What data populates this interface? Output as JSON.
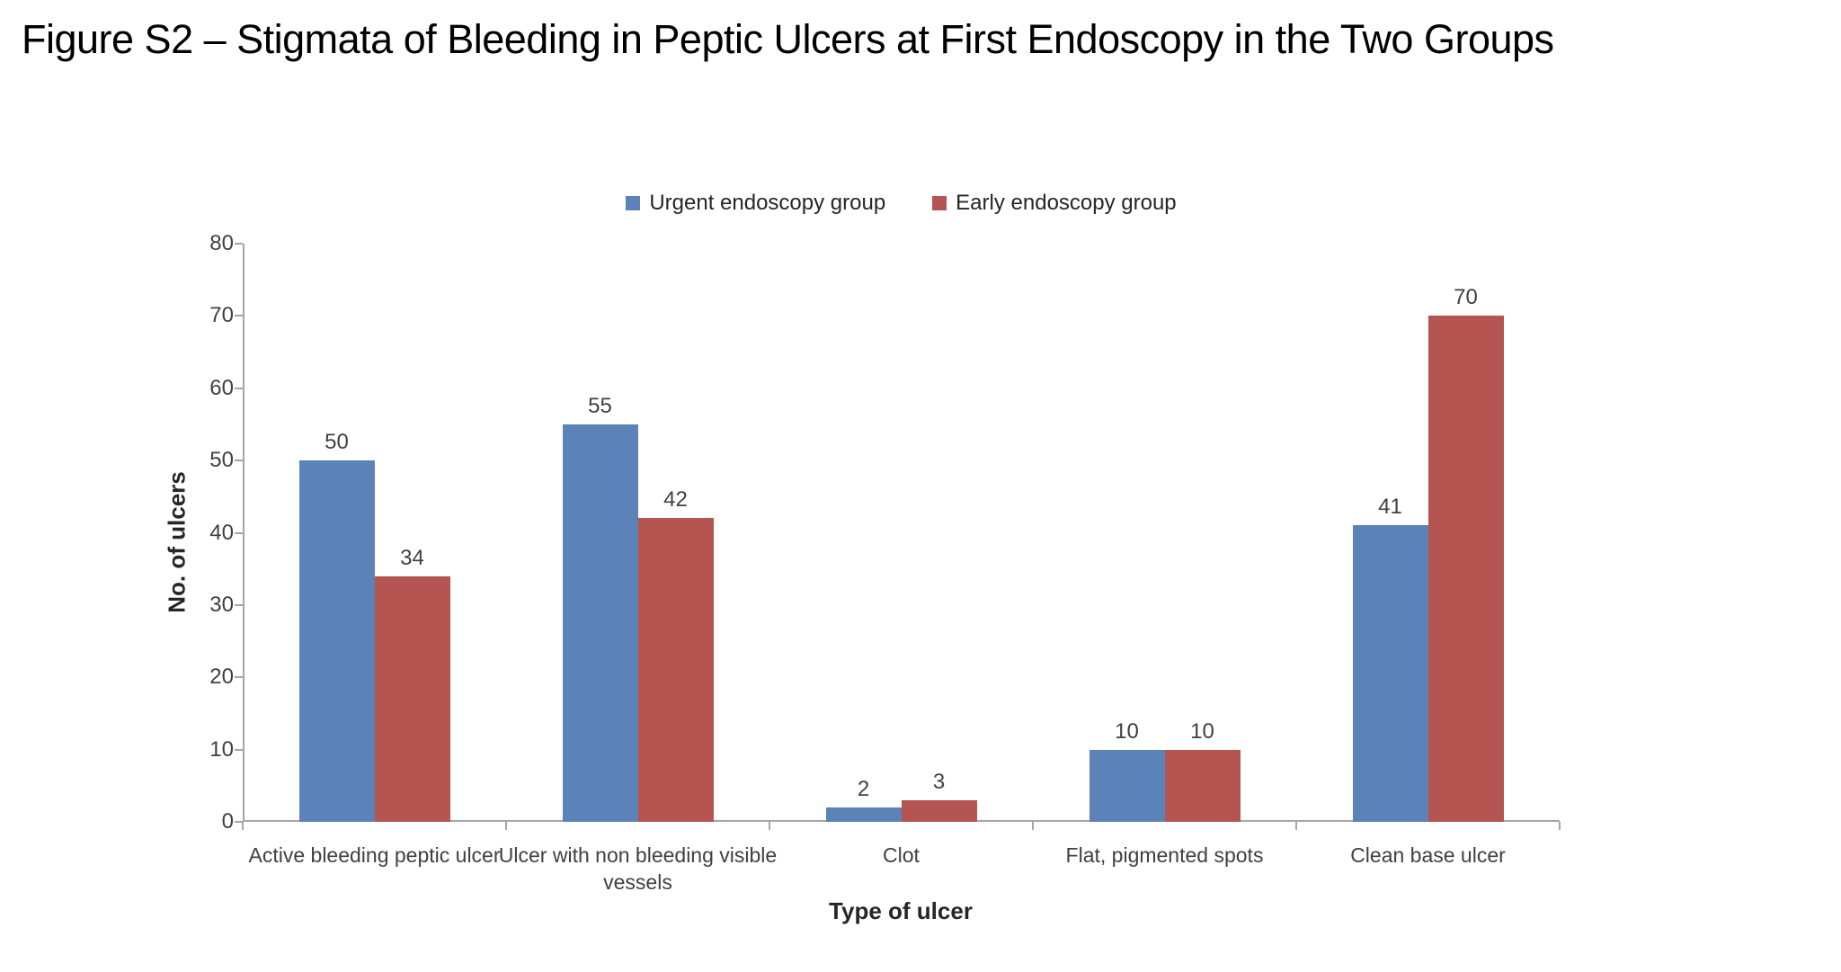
{
  "header": {
    "title": "Figure S2 – Stigmata of Bleeding in Peptic Ulcers at First Endoscopy in the Two Groups"
  },
  "chart_data": {
    "type": "bar",
    "title": "Figure S2 – Stigmata of Bleeding in Peptic Ulcers at First Endoscopy in the Two Groups",
    "categories": [
      "Active bleeding peptic ulcer",
      "Ulcer with non bleeding visible vessels",
      "Clot",
      "Flat, pigmented spots",
      "Clean base ulcer"
    ],
    "series": [
      {
        "name": "Urgent endoscopy group",
        "color": "#5B83B8",
        "values": [
          50,
          55,
          2,
          10,
          41
        ]
      },
      {
        "name": "Early endoscopy group",
        "color": "#B55551",
        "values": [
          34,
          42,
          3,
          10,
          70
        ]
      }
    ],
    "xlabel": "Type of ulcer",
    "ylabel": "No. of ulcers",
    "ylim": [
      0,
      80
    ],
    "ytick_step": 10,
    "legend_position": "top",
    "grid": "off",
    "bar_labels": true
  },
  "colors": {
    "axis_line": "#A6A6A6",
    "tick_text": "#404040",
    "title_text": "#000000"
  }
}
